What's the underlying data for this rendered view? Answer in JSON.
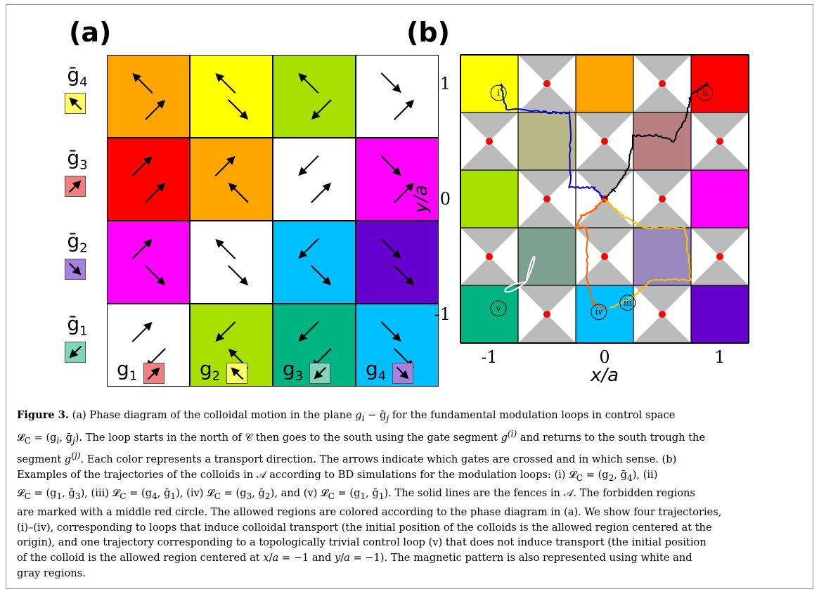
{
  "panel_a": {
    "title": "(a)",
    "row_labels": [
      {
        "label": "ḡ",
        "sub": "4",
        "color": "#ffff66",
        "arrow": "nw"
      },
      {
        "label": "ḡ",
        "sub": "3",
        "color": "#f08080",
        "arrow": "ne"
      },
      {
        "label": "ḡ",
        "sub": "2",
        "color": "#a77fe0",
        "arrow": "se"
      },
      {
        "label": "ḡ",
        "sub": "1",
        "color": "#7fd6b8",
        "arrow": "sw"
      }
    ],
    "col_labels": [
      {
        "label": "g",
        "sub": "1",
        "color": "#f08080",
        "arrow": "ne"
      },
      {
        "label": "g",
        "sub": "2",
        "color": "#ffff66",
        "arrow": "nw"
      },
      {
        "label": "g",
        "sub": "3",
        "color": "#7fd6b8",
        "arrow": "sw"
      },
      {
        "label": "g",
        "sub": "4",
        "color": "#a77fe0",
        "arrow": "se"
      }
    ],
    "cells": [
      [
        "#ffa500",
        "#ffff00",
        "#a8e000",
        "#ffffff"
      ],
      [
        "#ff0000",
        "#ffa500",
        "#ffffff",
        "#ff00ff"
      ],
      [
        "#ff00ff",
        "#ffffff",
        "#00bfff",
        "#6600cc"
      ],
      [
        "#ffffff",
        "#a8e000",
        "#00b383",
        "#00bfff"
      ]
    ],
    "cell_arrows": [
      [
        [
          "nw",
          "ne"
        ],
        [
          "nw",
          "se"
        ],
        [
          "nw",
          "sw"
        ],
        [
          "se",
          "ne"
        ]
      ],
      [
        [
          "ne",
          "ne"
        ],
        [
          "ne",
          "nw"
        ],
        [
          "sw",
          "ne"
        ],
        [
          "se",
          "ne"
        ]
      ],
      [
        [
          "ne",
          "se"
        ],
        [
          "nw",
          "se"
        ],
        [
          "sw",
          "se"
        ],
        [
          "se",
          "se"
        ]
      ],
      [
        [
          "ne",
          "sw"
        ],
        [
          "sw",
          "nw"
        ],
        [
          "sw",
          "sw"
        ],
        [
          "se",
          "se"
        ]
      ]
    ]
  },
  "panel_b": {
    "title": "(b)",
    "xlabel": "x/a",
    "ylabel": "y/a",
    "xticks": [
      "-1",
      "0",
      "1"
    ],
    "yticks": [
      "1",
      "0",
      "-1"
    ],
    "markers": [
      "i",
      "ii",
      "iii",
      "iv",
      "v"
    ],
    "tile_colors": [
      [
        "#ffff00",
        "pattern",
        "#ffa500",
        "pattern",
        "#ff0000"
      ],
      [
        "pattern",
        "#b8b888",
        "pattern",
        "#b88080",
        "pattern"
      ],
      [
        "#a8e000",
        "pattern",
        "pattern",
        "pattern",
        "#ff00ff"
      ],
      [
        "pattern",
        "#7fa090",
        "pattern",
        "#9988bb",
        "pattern"
      ],
      [
        "#00b383",
        "pattern",
        "#00bfff",
        "pattern",
        "#6600cc"
      ]
    ],
    "trajectory_colors": {
      "i": "#0000dd",
      "ii": "#000000",
      "iii": "#ffc000",
      "iv": "#ff6000",
      "v": "#ffffff"
    }
  },
  "caption": {
    "fig_label": "Figure 3.",
    "text_1": " (a) Phase diagram of the colloidal motion in the plane ",
    "text_1b": "g",
    "text_1c": "i",
    "text_1d": " − ḡ",
    "text_1e": "j",
    "text_1f": " for the fundamental modulation loops in control space",
    "text_2": "𝓛",
    "text_2b": "C",
    "text_2c": " = (g",
    "text_2d": "i",
    "text_2e": ", ḡ",
    "text_2f": "j",
    "text_2g": "). The loop starts in the north of 𝒞 then goes to the south using the gate segment ",
    "text_2h": "g",
    "text_2i": "(i)",
    "text_2j": " and returns to the south trough the",
    "text_3": "segment ",
    "text_3b": "g",
    "text_3c": "(j)",
    "text_3d": ". Each color represents a transport direction. The arrows indicate which gates are crossed and in which sense. (b)",
    "text_4": "Examples of the trajectories of the colloids in 𝒜 according to BD simulations for the modulation loops: (i) 𝓛",
    "text_4b": "C",
    "text_4c": " = (g",
    "text_4d": "2",
    "text_4e": ", ḡ",
    "text_4f": "4",
    "text_4g": "), (ii)",
    "text_5": "𝓛",
    "text_5b": "C",
    "text_5c": " = (g",
    "text_5d": "1",
    "text_5e": ", ḡ",
    "text_5f": "3",
    "text_5g": "), (iii) 𝓛",
    "text_5h": "C",
    "text_5i": " = (g",
    "text_5j": "4",
    "text_5k": ", ḡ",
    "text_5l": "1",
    "text_5m": "), (iv) 𝓛",
    "text_5n": "C",
    "text_5o": " = (g",
    "text_5p": "3",
    "text_5q": ", ḡ",
    "text_5r": "2",
    "text_5s": "), and (v) 𝓛",
    "text_5t": "C",
    "text_5u": " = (g",
    "text_5v": "1",
    "text_5w": ", ḡ",
    "text_5x": "1",
    "text_5y": "). The solid lines are the fences in 𝒜. The forbidden regions",
    "text_6": "are marked with a middle red circle. The allowed regions are colored according to the phase diagram in (a). We show four trajectories,",
    "text_7": "(i)–(iv), corresponding to loops that induce colloidal transport (the initial position of the colloids is the allowed region centered at the",
    "text_8": "origin), and one trajectory corresponding to a topologically trivial control loop (v) that does not induce transport (the initial position",
    "text_9": "of the colloid is the allowed region centered at ",
    "text_9b": "x",
    "text_9c": "/",
    "text_9d": "a",
    "text_9e": " = −1 and ",
    "text_9f": "y",
    "text_9g": "/",
    "text_9h": "a",
    "text_9i": " = −1). The magnetic pattern is also represented using white and",
    "text_10": "gray regions."
  }
}
